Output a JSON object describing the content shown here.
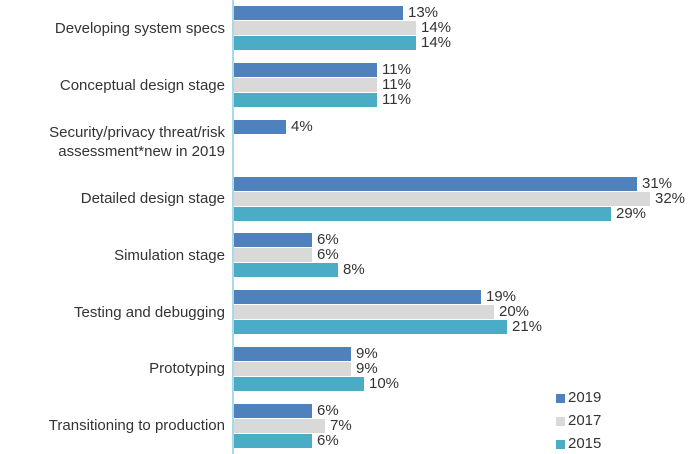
{
  "chart_data": {
    "type": "bar",
    "orientation": "horizontal",
    "title": "",
    "xlabel": "",
    "ylabel": "",
    "xlim": [
      0,
      35
    ],
    "grid": false,
    "value_suffix": "%",
    "legend_position": "bottom-right",
    "axis_line_color": "#A9DAE8",
    "text_color": "#333333",
    "categories": [
      "Developing system specs",
      "Conceptual design stage",
      "Security/privacy threat/risk assessment*new in 2019",
      "Detailed design stage",
      "Simulation stage",
      "Testing and debugging",
      "Prototyping",
      "Transitioning to production"
    ],
    "series": [
      {
        "name": "2019",
        "color": "#4F81BD",
        "values": [
          13,
          11,
          4,
          31,
          6,
          19,
          9,
          6
        ]
      },
      {
        "name": "2017",
        "color": "#D9D9D9",
        "values": [
          14,
          11,
          null,
          32,
          6,
          20,
          9,
          7
        ]
      },
      {
        "name": "2015",
        "color": "#4BACC6",
        "values": [
          14,
          11,
          null,
          29,
          8,
          21,
          10,
          6
        ]
      }
    ],
    "legend": [
      {
        "label": "2019",
        "color": "#4F81BD"
      },
      {
        "label": "2017",
        "color": "#D9D9D9"
      },
      {
        "label": "2015",
        "color": "#4BACC6"
      }
    ]
  }
}
